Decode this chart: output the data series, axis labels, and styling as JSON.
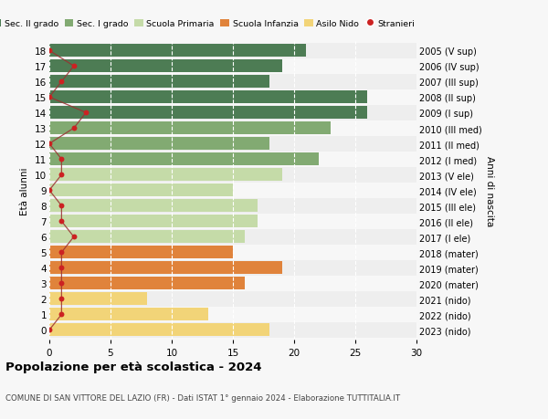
{
  "ages": [
    18,
    17,
    16,
    15,
    14,
    13,
    12,
    11,
    10,
    9,
    8,
    7,
    6,
    5,
    4,
    3,
    2,
    1,
    0
  ],
  "right_labels": [
    "2005 (V sup)",
    "2006 (IV sup)",
    "2007 (III sup)",
    "2008 (II sup)",
    "2009 (I sup)",
    "2010 (III med)",
    "2011 (II med)",
    "2012 (I med)",
    "2013 (V ele)",
    "2014 (IV ele)",
    "2015 (III ele)",
    "2016 (II ele)",
    "2017 (I ele)",
    "2018 (mater)",
    "2019 (mater)",
    "2020 (mater)",
    "2021 (nido)",
    "2022 (nido)",
    "2023 (nido)"
  ],
  "bar_values": [
    21,
    19,
    18,
    26,
    26,
    23,
    18,
    22,
    19,
    15,
    17,
    17,
    16,
    15,
    19,
    16,
    8,
    13,
    18
  ],
  "bar_colors": [
    "#4d7c54",
    "#4d7c54",
    "#4d7c54",
    "#4d7c54",
    "#4d7c54",
    "#82aa72",
    "#82aa72",
    "#82aa72",
    "#c5dba8",
    "#c5dba8",
    "#c5dba8",
    "#c5dba8",
    "#c5dba8",
    "#e0833b",
    "#e0833b",
    "#e0833b",
    "#f2d478",
    "#f2d478",
    "#f2d478"
  ],
  "stranieri_values": [
    0,
    2,
    1,
    0,
    3,
    2,
    0,
    1,
    1,
    0,
    1,
    1,
    2,
    1,
    1,
    1,
    1,
    1,
    0
  ],
  "legend_labels": [
    "Sec. II grado",
    "Sec. I grado",
    "Scuola Primaria",
    "Scuola Infanzia",
    "Asilo Nido",
    "Stranieri"
  ],
  "legend_colors": [
    "#4d7c54",
    "#82aa72",
    "#c5dba8",
    "#e0833b",
    "#f2d478",
    "#cc2222"
  ],
  "title": "Popolazione per età scolastica - 2024",
  "subtitle": "COMUNE DI SAN VITTORE DEL LAZIO (FR) - Dati ISTAT 1° gennaio 2024 - Elaborazione TUTTITALIA.IT",
  "ylabel_left": "Età alunni",
  "ylabel_right": "Anni di nascita",
  "xlim": [
    0,
    30
  ],
  "bg_color": "#f7f7f7",
  "bar_row_bg1": "#eeeeee",
  "bar_row_bg2": "#f7f7f7"
}
